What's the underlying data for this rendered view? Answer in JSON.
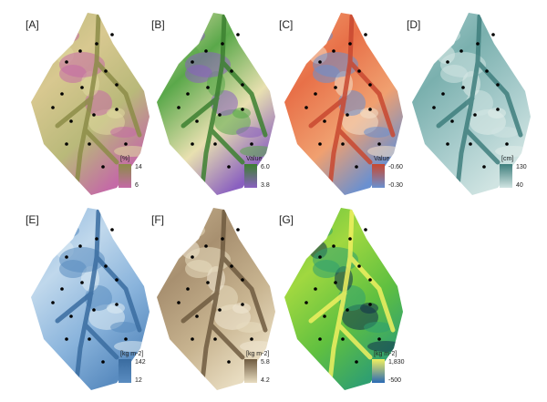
{
  "panels": [
    {
      "label": "[A]",
      "legend_title": "[%]",
      "legend_max": "14",
      "legend_min": "6"
    },
    {
      "label": "[B]",
      "legend_title": "Value",
      "legend_max": "6.0",
      "legend_min": "3.8"
    },
    {
      "label": "[C]",
      "legend_title": "Value",
      "legend_max": "-0.60",
      "legend_min": "-0.30"
    },
    {
      "label": "[D]",
      "legend_title": "[cm]",
      "legend_max": "130",
      "legend_min": "40"
    },
    {
      "label": "[E]",
      "legend_title": "[kg m-2]",
      "legend_max": "142",
      "legend_min": "12"
    },
    {
      "label": "[F]",
      "legend_title": "[kg m-2]",
      "legend_max": "5.8",
      "legend_min": "4.2"
    },
    {
      "label": "[G]",
      "legend_title": "[kg m-2]",
      "legend_max": "1,830",
      "legend_min": "-500"
    }
  ]
}
